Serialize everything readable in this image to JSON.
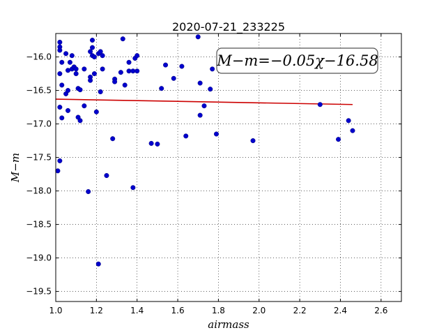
{
  "chart_data": {
    "type": "scatter",
    "title": "2020-07-21_233225",
    "xlabel": "airmass",
    "ylabel": "M−m",
    "xlim": [
      1.0,
      2.7
    ],
    "ylim": [
      -19.65,
      -15.65
    ],
    "y_inverted": false,
    "grid": true,
    "grid_style": "dotted",
    "x_ticks": [
      "1.0",
      "1.2",
      "1.4",
      "1.6",
      "1.8",
      "2.0",
      "2.2",
      "2.4",
      "2.6"
    ],
    "y_ticks": [
      "−16.0",
      "−16.5",
      "−17.0",
      "−17.5",
      "−18.0",
      "−18.5",
      "−19.0",
      "−19.5"
    ],
    "annotation": "M−m=−0.05χ−16.58",
    "series": [
      {
        "kind": "points",
        "color": "#0000cc",
        "x": [
          1.01,
          1.02,
          1.02,
          1.02,
          1.02,
          1.02,
          1.03,
          1.02,
          1.03,
          1.03,
          1.05,
          1.05,
          1.06,
          1.06,
          1.06,
          1.07,
          1.08,
          1.08,
          1.09,
          1.09,
          1.1,
          1.1,
          1.11,
          1.11,
          1.12,
          1.12,
          1.14,
          1.14,
          1.16,
          1.17,
          1.17,
          1.17,
          1.18,
          1.18,
          1.18,
          1.19,
          1.19,
          1.2,
          1.21,
          1.21,
          1.22,
          1.22,
          1.23,
          1.23,
          1.25,
          1.28,
          1.29,
          1.29,
          1.32,
          1.33,
          1.34,
          1.36,
          1.36,
          1.38,
          1.38,
          1.39,
          1.4,
          1.4,
          1.47,
          1.5,
          1.52,
          1.54,
          1.58,
          1.62,
          1.64,
          1.7,
          1.71,
          1.71,
          1.73,
          1.76,
          1.77,
          1.79,
          1.97,
          2.3,
          2.39,
          2.44,
          2.46
        ],
        "y": [
          -17.7,
          -15.78,
          -15.85,
          -15.9,
          -16.25,
          -16.75,
          -16.91,
          -17.55,
          -16.08,
          -16.42,
          -15.95,
          -16.55,
          -16.2,
          -16.5,
          -16.8,
          -16.08,
          -16.18,
          -15.98,
          -16.15,
          -16.15,
          -16.18,
          -16.25,
          -16.47,
          -16.9,
          -16.49,
          -16.95,
          -16.18,
          -16.73,
          -18.01,
          -15.92,
          -16.3,
          -16.35,
          -15.75,
          -15.86,
          -15.98,
          -16.25,
          -16.0,
          -16.82,
          -19.09,
          -15.95,
          -15.92,
          -16.52,
          -15.98,
          -16.18,
          -17.77,
          -17.22,
          -16.33,
          -16.37,
          -16.23,
          -15.73,
          -16.42,
          -16.08,
          -16.21,
          -16.21,
          -17.95,
          -16.02,
          -15.98,
          -16.21,
          -17.29,
          -17.3,
          -16.47,
          -16.12,
          -16.32,
          -16.14,
          -17.18,
          -15.7,
          -16.39,
          -16.87,
          -16.73,
          -16.48,
          -16.18,
          -17.15,
          -17.25,
          -16.71,
          -17.23,
          -16.95,
          -17.1
        ]
      },
      {
        "kind": "fit-line",
        "color": "#cc0000",
        "x": [
          1.0,
          2.46
        ],
        "y": [
          -16.63,
          -16.71
        ]
      }
    ]
  }
}
